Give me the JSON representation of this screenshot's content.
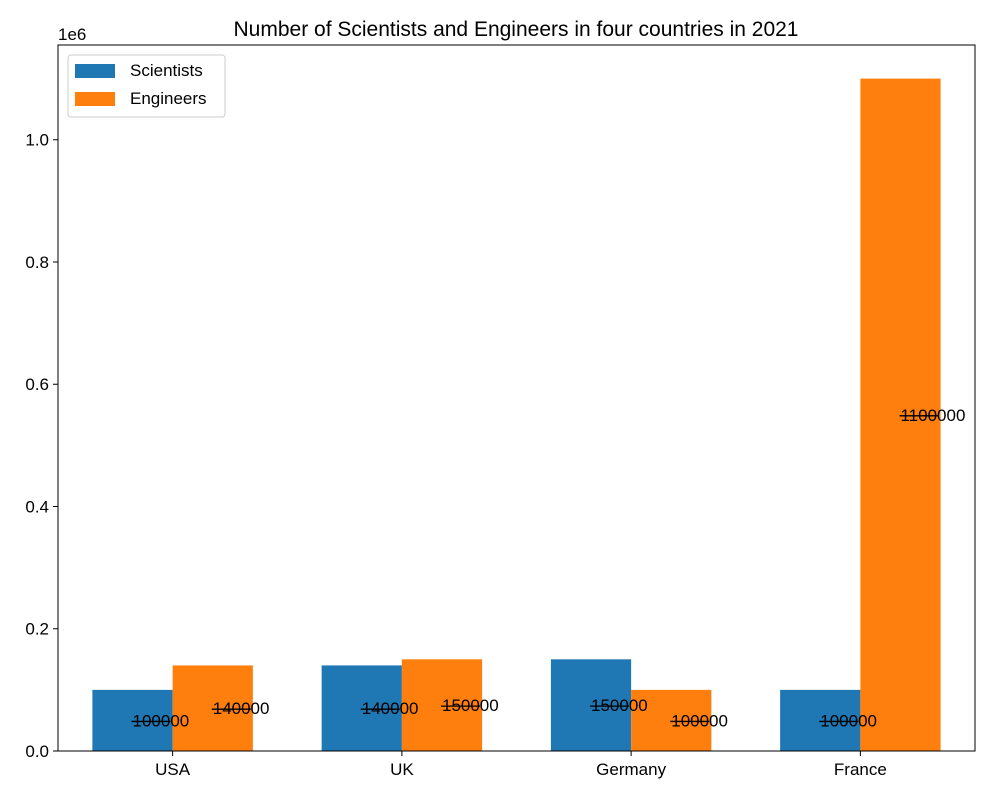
{
  "chart_data": {
    "type": "bar",
    "title": "Number of Scientists and Engineers in four countries in 2021",
    "xlabel": "",
    "ylabel": "",
    "categories": [
      "USA",
      "UK",
      "Germany",
      "France"
    ],
    "series": [
      {
        "name": "Scientists",
        "values": [
          100000,
          140000,
          150000,
          100000
        ],
        "color": "#1f77b4"
      },
      {
        "name": "Engineers",
        "values": [
          140000,
          150000,
          100000,
          1100000
        ],
        "color": "#ff7f0e"
      }
    ],
    "data_labels": [
      [
        "100000",
        "140000",
        "150000",
        "100000"
      ],
      [
        "140000",
        "150000",
        "100000",
        "1100000"
      ]
    ],
    "ylim": [
      0,
      1155000
    ],
    "y_ticks": [
      0,
      200000,
      400000,
      600000,
      800000,
      1000000
    ],
    "y_tick_labels": [
      "0.0",
      "0.2",
      "0.4",
      "0.6",
      "0.8",
      "1.0"
    ],
    "y_offset_label": "1e6",
    "legend": {
      "placement": "top-left",
      "entries": [
        "Scientists",
        "Engineers"
      ]
    },
    "grid": false
  }
}
